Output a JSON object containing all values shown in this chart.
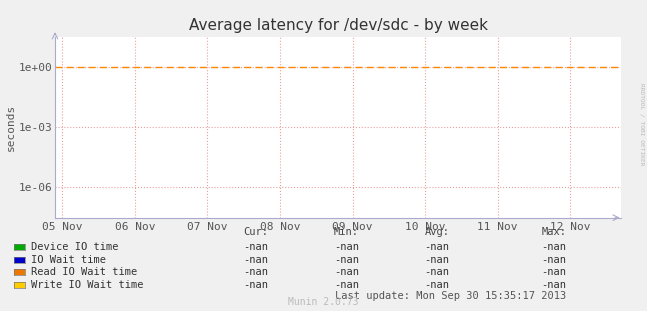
{
  "title": "Average latency for /dev/sdc - by week",
  "ylabel": "seconds",
  "background_color": "#f0f0f0",
  "plot_bg_color": "#ffffff",
  "grid_major_color": "#e8a0a0",
  "grid_minor_color": "#d8d8ee",
  "dashed_line_y": 1.0,
  "dashed_line_color": "#ff8800",
  "ylim_bottom": 3e-08,
  "ylim_top": 30.0,
  "xlim_left": -0.1,
  "xlim_right": 7.7,
  "xtick_labels": [
    "05 Nov",
    "06 Nov",
    "07 Nov",
    "08 Nov",
    "09 Nov",
    "10 Nov",
    "11 Nov",
    "12 Nov"
  ],
  "xtick_positions": [
    0,
    1,
    2,
    3,
    4,
    5,
    6,
    7
  ],
  "ytick_positions": [
    1e-06,
    0.001,
    1.0
  ],
  "ytick_labels": [
    "1e-06",
    "1e-03",
    "1e+00"
  ],
  "legend_items": [
    {
      "label": "Device IO time",
      "color": "#00aa00"
    },
    {
      "label": "IO Wait time",
      "color": "#0000cc"
    },
    {
      "label": "Read IO Wait time",
      "color": "#ee7700"
    },
    {
      "label": "Write IO Wait time",
      "color": "#ffcc00"
    }
  ],
  "table_headers": [
    "Cur:",
    "Min:",
    "Avg:",
    "Max:"
  ],
  "table_val": "-nan",
  "last_update": "Last update: Mon Sep 30 15:35:17 2013",
  "munin_text": "Munin 2.0.73",
  "rrdtool_text": "RRDTOOL / TOBI OETIKER",
  "spine_color": "#aaaacc",
  "title_fontsize": 11,
  "tick_fontsize": 8,
  "label_fontsize": 8,
  "legend_fontsize": 7.5,
  "table_fontsize": 7.5,
  "munin_fontsize": 7,
  "rrdtool_fontsize": 4.5
}
